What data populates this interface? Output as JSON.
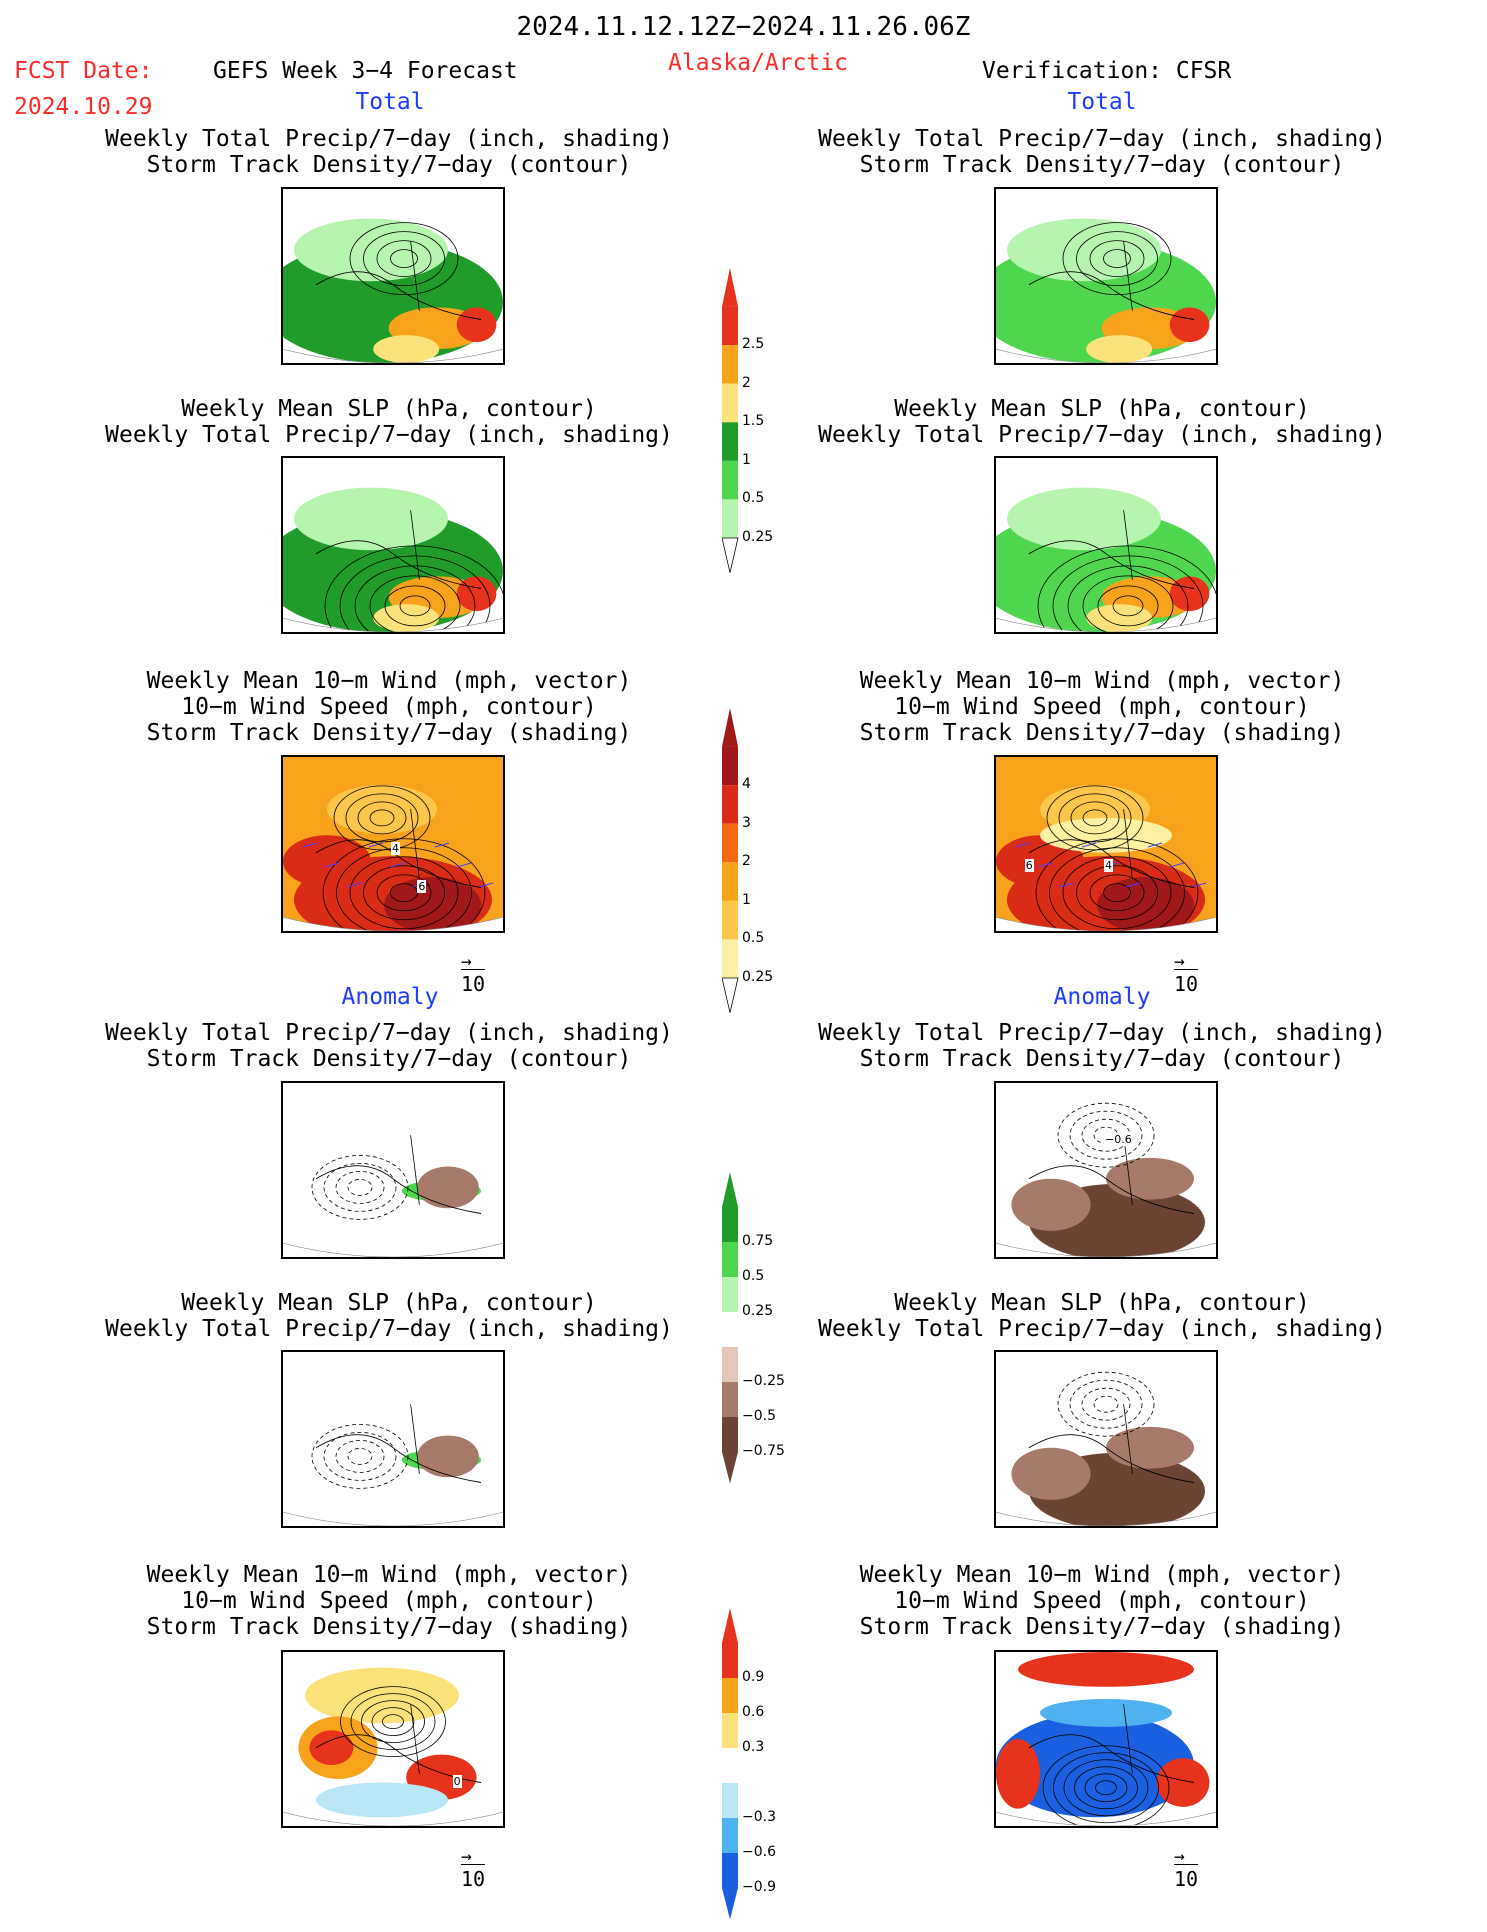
{
  "header": {
    "period": "2024.11.12.12Z−2024.11.26.06Z",
    "fcst_date_label": "FCST Date:",
    "fcst_date_value": "2024.10.29",
    "model": "GEFS Week 3−4 Forecast",
    "region": "Alaska/Arctic",
    "verification": "Verification: CFSR"
  },
  "sections": {
    "total": "Total",
    "anomaly": "Anomaly"
  },
  "panel_titles": {
    "precip_track": [
      "Weekly Total Precip/7−day (inch, shading)",
      "Storm Track Density/7−day (contour)"
    ],
    "slp_precip": [
      "Weekly Mean SLP (hPa, contour)",
      "Weekly Total Precip/7−day (inch, shading)"
    ],
    "wind_track": [
      "Weekly Mean 10−m Wind (mph, vector)",
      "10−m Wind Speed (mph, contour)",
      "Storm Track Density/7−day (shading)"
    ]
  },
  "vector_ref": "10",
  "colorbars": {
    "precip_total": {
      "labels": [
        "2.5",
        "2",
        "1.5",
        "1",
        "0.5",
        "0.25"
      ],
      "colors": [
        "#e8331c",
        "#f9a21b",
        "#fde27a",
        "#1f9c2a",
        "#4fd64f",
        "#b6f5ae"
      ]
    },
    "track_total": {
      "labels": [
        "4",
        "3",
        "2",
        "1",
        "0.5",
        "0.25"
      ],
      "colors": [
        "#a01818",
        "#d92b16",
        "#f26a14",
        "#f9a21b",
        "#fcc64a",
        "#fdf0a0"
      ]
    },
    "precip_anom": {
      "labels": [
        "0.75",
        "0.5",
        "0.25",
        "−0.25",
        "−0.5",
        "−0.75"
      ],
      "colors": [
        "#1f9c2a",
        "#4fd64f",
        "#b6f5ae",
        "#ffffff",
        "#e3c6b8",
        "#a77a6a",
        "#6b4433"
      ]
    },
    "track_anom": {
      "labels": [
        "0.9",
        "0.6",
        "0.3",
        "−0.3",
        "−0.6",
        "−0.9"
      ],
      "colors": [
        "#e8331c",
        "#f9a21b",
        "#fde27a",
        "#ffffff",
        "#b8e7f5",
        "#4fb2f0",
        "#1a5fe0"
      ]
    }
  },
  "map_values": [
    {
      "label": "4"
    },
    {
      "label": "6"
    },
    {
      "label": "6"
    },
    {
      "label": "4"
    },
    {
      "label": "0"
    },
    {
      "label": "−0.6"
    }
  ]
}
